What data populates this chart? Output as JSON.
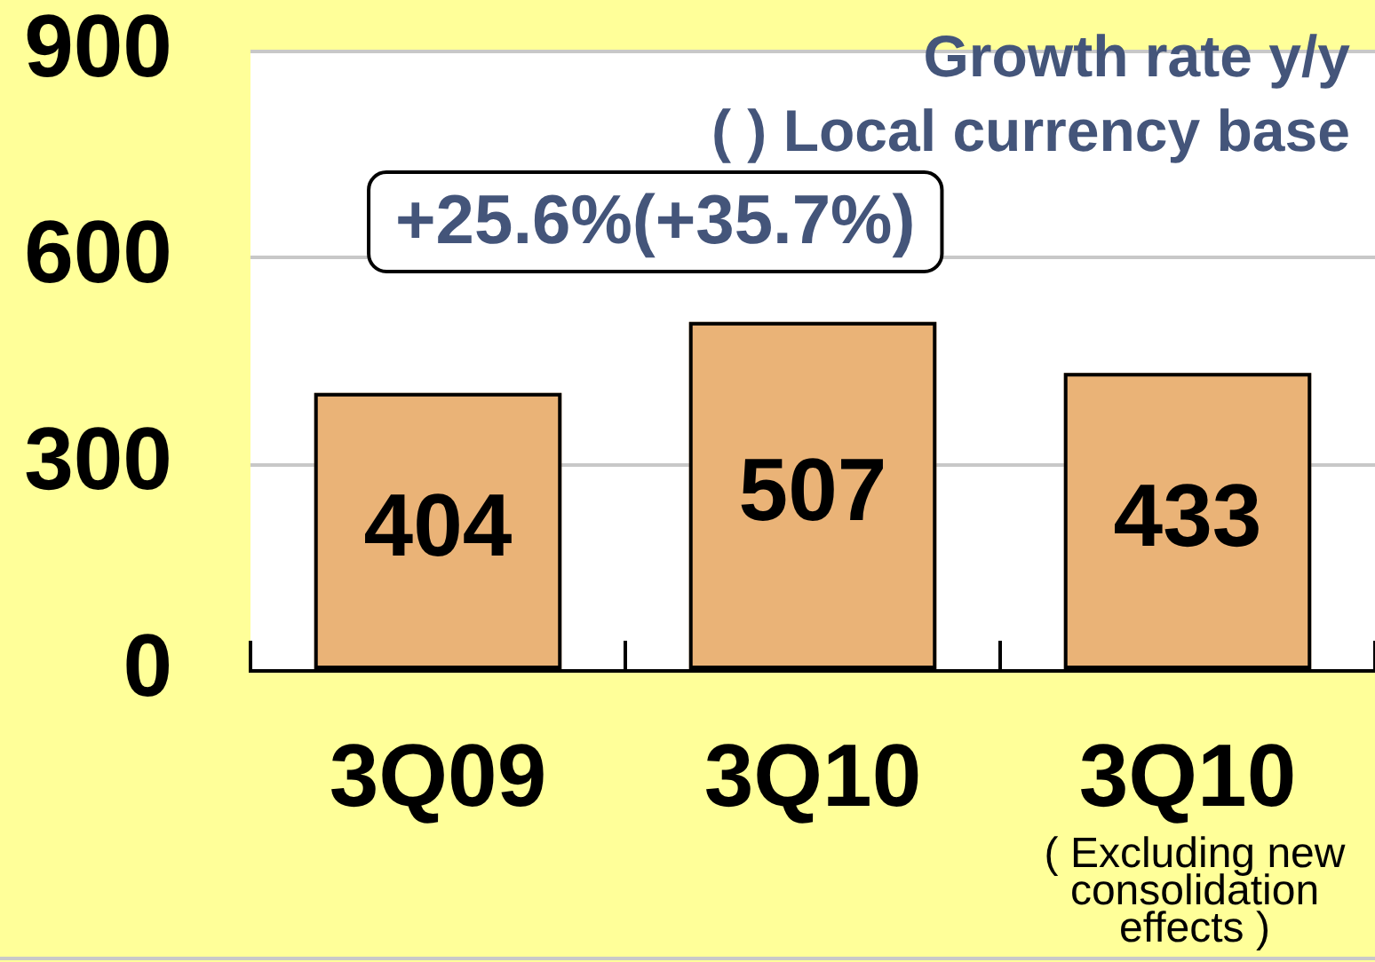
{
  "chart_data": {
    "type": "bar",
    "title": "Growth rate y/y",
    "subtitle": "( ) Local currency base",
    "categories": [
      "3Q09",
      "3Q10",
      "3Q10\n( Excluding new consolidation effects )"
    ],
    "values": [
      404,
      507,
      433
    ],
    "color": "#eab377",
    "ylim": [
      0,
      900
    ],
    "yticks": [
      0,
      300,
      600,
      900
    ],
    "grid": "y",
    "data_labels": true,
    "annotations": [
      "+25.6%(+35.7%)"
    ]
  }
}
